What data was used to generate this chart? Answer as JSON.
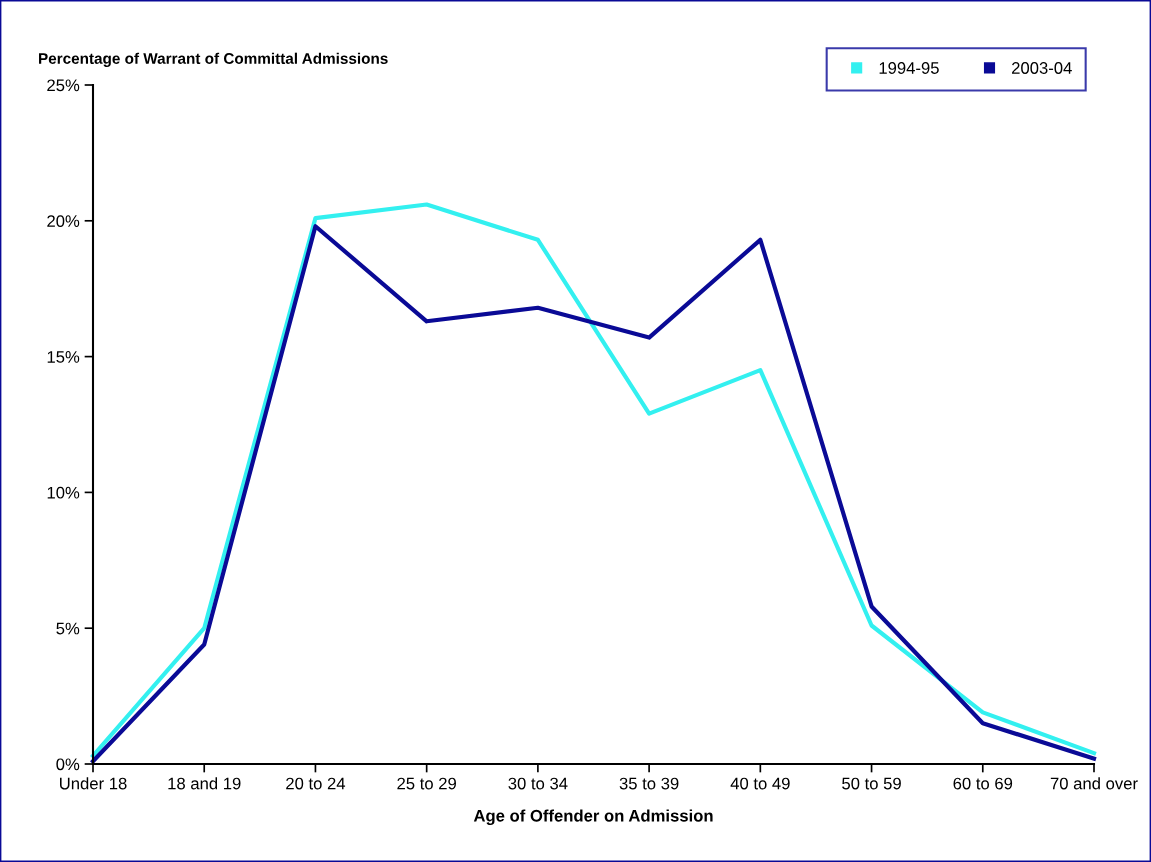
{
  "chart_data": {
    "type": "line",
    "ylabel": "Percentage of Warrant of Committal Admissions",
    "xlabel": "Age of Offender on Admission",
    "categories": [
      "Under 18",
      "18 and 19",
      "20 to 24",
      "25 to 29",
      "30 to 34",
      "35 to 39",
      "40 to 49",
      "50 to 59",
      "60 to 69",
      "70 and over"
    ],
    "series": [
      {
        "name": "1994-95",
        "color": "#33f0f0",
        "values": [
          0.3,
          5.0,
          20.1,
          20.6,
          19.3,
          12.9,
          14.5,
          5.1,
          1.9,
          0.4
        ]
      },
      {
        "name": "2003-04",
        "color": "#0a0a96",
        "values": [
          0.1,
          4.4,
          19.8,
          16.3,
          16.8,
          15.7,
          19.3,
          5.8,
          1.5,
          0.2
        ]
      }
    ],
    "ylim": [
      0,
      25
    ],
    "yticks": [
      {
        "value": 0,
        "label": "0%"
      },
      {
        "value": 5,
        "label": "5%"
      },
      {
        "value": 10,
        "label": "10%"
      },
      {
        "value": 15,
        "label": "15%"
      },
      {
        "value": 20,
        "label": "20%"
      },
      {
        "value": 25,
        "label": "25%"
      }
    ],
    "grid": false,
    "legend": "top right",
    "marker": "none",
    "line_style": "solid"
  }
}
